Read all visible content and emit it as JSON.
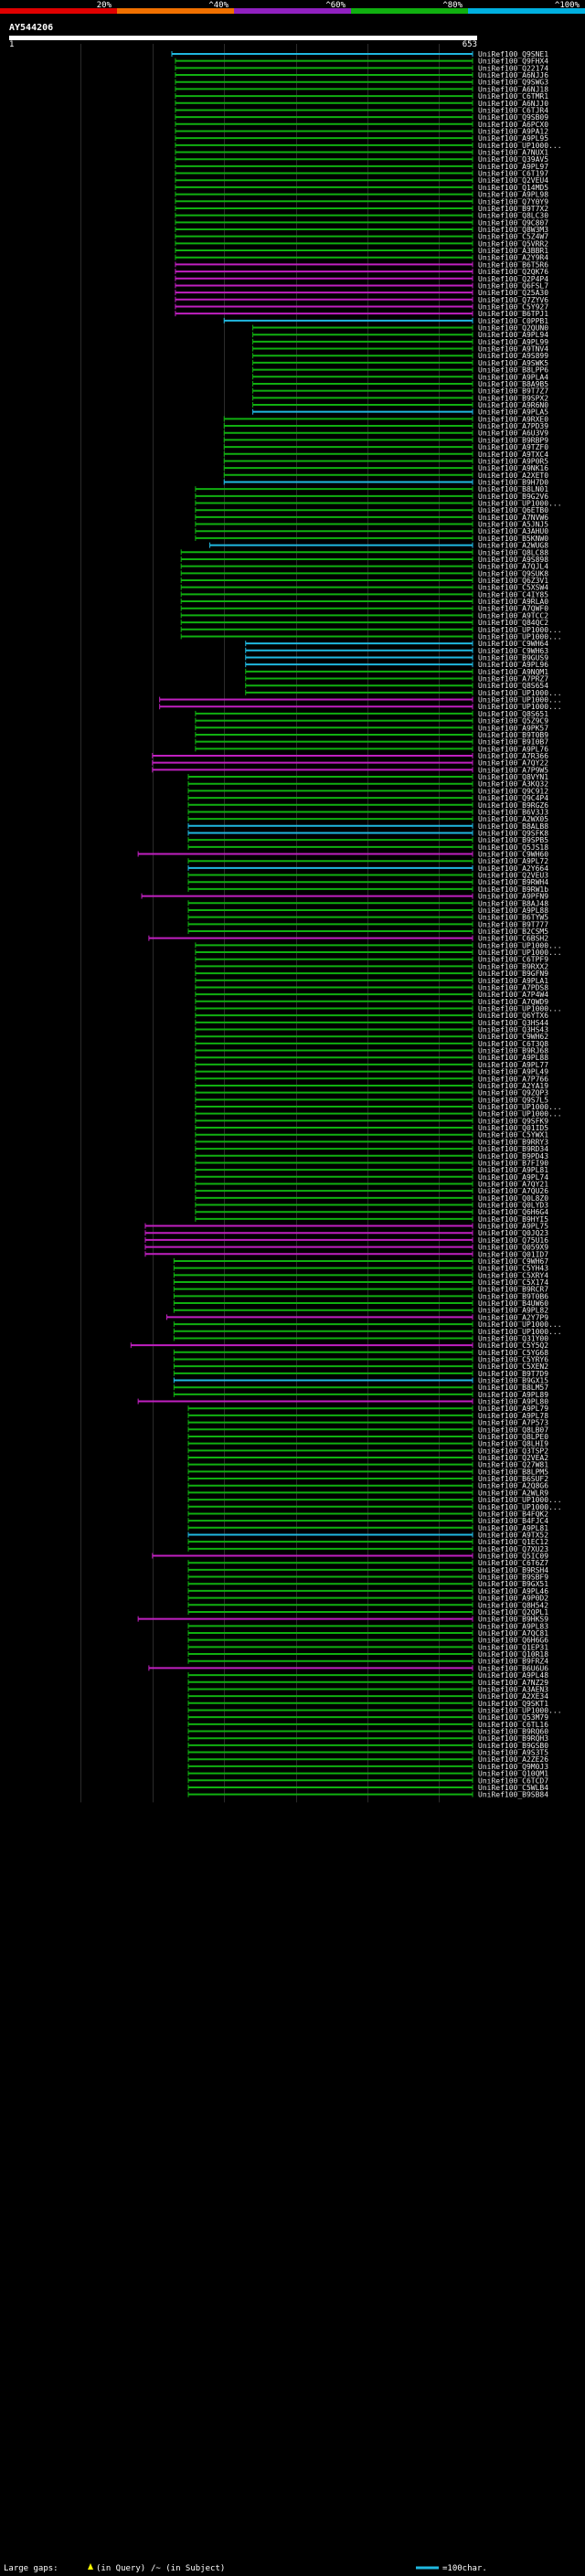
{
  "chart_data": {
    "type": "alignment-overview",
    "query_id": "AY544206",
    "query_start_label": "1",
    "query_length_label": "653",
    "query_length": 653,
    "identity_scale": [
      {
        "label": "20%",
        "color": "#e00000"
      },
      {
        "label": "^40%",
        "color": "#f07000"
      },
      {
        "label": "^60%",
        "color": "#9020c0"
      },
      {
        "label": "^80%",
        "color": "#10b010"
      },
      {
        "label": "^100%",
        "color": "#00b0e0"
      }
    ],
    "legend": {
      "large_gaps_prefix": "Large gaps:",
      "in_query_text": "(in Query)",
      "in_subject_text": "/~ (in Subject)",
      "scale_text": "=100char."
    },
    "palette": {
      "green": "#10b010",
      "magenta": "#c020c0",
      "cyan": "#20b8e0"
    },
    "hit_groups": [
      {
        "color": "cyan",
        "start": 227,
        "names": [
          "UniRef100_Q9SNE1"
        ]
      },
      {
        "color": "green",
        "start": 232,
        "names": [
          "UniRef100_Q9FHX4",
          "UniRef100_Q22174",
          "UniRef100_A6NJJ6",
          "UniRef100_Q9SWG3",
          "UniRef100_A6NJ18",
          "UniRef100_C6TMR1",
          "UniRef100_A6NJJ0",
          "UniRef100_C6TJR4",
          "UniRef100_Q9SB09",
          "UniRef100_A6PCX0",
          "UniRef100_A9PA12",
          "UniRef100_A9PL95",
          "UniRef100_UP1000...",
          "UniRef100_A7NUX1",
          "UniRef100_Q39AV5",
          "UniRef100_A9PL97",
          "UniRef100_C6T197",
          "UniRef100_Q2VEU4",
          "UniRef100_Q14MD5",
          "UniRef100_A9PL98",
          "UniRef100_Q7Y0Y9",
          "UniRef100_B9T7X2",
          "UniRef100_Q8LC30",
          "UniRef100_Q9C807",
          "UniRef100_Q8W3M3",
          "UniRef100_C5Z4W7",
          "UniRef100_Q5VRR2",
          "UniRef100_A3BBR1",
          "UniRef100_A2Y9R4"
        ]
      },
      {
        "color": "magenta",
        "start": 232,
        "names": [
          "UniRef100_B6T5R6",
          "UniRef100_Q2QK76",
          "UniRef100_Q2P4P4",
          "UniRef100_Q6FSL7",
          "UniRef100_Q25A30",
          "UniRef100_Q7ZYV6",
          "UniRef100_C5Y927",
          "UniRef100_B6TPJ1"
        ]
      },
      {
        "color": "cyan",
        "start": 300,
        "names": [
          "UniRef100_C0PPB1"
        ]
      },
      {
        "color": "green",
        "start": 340,
        "names": [
          "UniRef100_Q2QUN0",
          "UniRef100_A9PL94",
          "UniRef100_A9PL99",
          "UniRef100_A9TNV4",
          "UniRef100_A9S899",
          "UniRef100_A9SWK5",
          "UniRef100_B8LPP6",
          "UniRef100_A9PLA4",
          "UniRef100_B8A9B5",
          "UniRef100_B9T7Z7",
          "UniRef100_B9SPX2",
          "UniRef100_A9R6N0"
        ]
      },
      {
        "color": "cyan",
        "start": 340,
        "names": [
          "UniRef100_A9PLA5"
        ]
      },
      {
        "color": "green",
        "start": 300,
        "names": [
          "UniRef100_A9RXE0",
          "UniRef100_A7PD39",
          "UniRef100_A6U3V9",
          "UniRef100_B9RBP9",
          "UniRef100_A9TZF0",
          "UniRef100_A9TXC4",
          "UniRef100_A9P0R5",
          "UniRef100_A9NK16",
          "UniRef100_A2XET0"
        ]
      },
      {
        "color": "cyan",
        "start": 300,
        "names": [
          "UniRef100_B9H7D0"
        ]
      },
      {
        "color": "green",
        "start": 260,
        "names": [
          "UniRef100_B8LN01",
          "UniRef100_B9G2V6",
          "UniRef100_UP1000...",
          "UniRef100_Q6ETB0",
          "UniRef100_A7NVW6",
          "UniRef100_A5JNJ5",
          "UniRef100_A3AHU0",
          "UniRef100_B5KNW0"
        ]
      },
      {
        "color": "cyan",
        "start": 280,
        "names": [
          "UniRef100_A2WUG8"
        ]
      },
      {
        "color": "green",
        "start": 240,
        "names": [
          "UniRef100_Q8LC88",
          "UniRef100_A9S898",
          "UniRef100_A7QJL4",
          "UniRef100_Q9SUK8",
          "UniRef100_Q6Z3V1",
          "UniRef100_C5XSW4",
          "UniRef100_C4IY85",
          "UniRef100_A9RLA0",
          "UniRef100_A7QWF0",
          "UniRef100_A9TCC2",
          "UniRef100_Q84QC2",
          "UniRef100_UP1000...",
          "UniRef100_UP1000..."
        ]
      },
      {
        "color": "cyan",
        "start": 330,
        "names": [
          "UniRef100_C9WH64",
          "UniRef100_C9WH63",
          "UniRef100_B9GUS9",
          "UniRef100_A9PL96"
        ]
      },
      {
        "color": "green",
        "start": 330,
        "names": [
          "UniRef100_A9NQM1",
          "UniRef100_A7PRZ7",
          "UniRef100_Q8S654",
          "UniRef100_UP1000..."
        ]
      },
      {
        "color": "magenta",
        "start": 210,
        "names": [
          "UniRef100_UP1000...",
          "UniRef100_UP1000..."
        ]
      },
      {
        "color": "green",
        "start": 260,
        "names": [
          "UniRef100_Q8S651",
          "UniRef100_Q5Z9C9",
          "UniRef100_A9PK57",
          "UniRef100_B9T0B9",
          "UniRef100_B9I0B7",
          "UniRef100_A9PL76"
        ]
      },
      {
        "color": "magenta",
        "start": 200,
        "names": [
          "UniRef100_A7R366",
          "UniRef100_A7QY22",
          "UniRef100_A7P9W5"
        ]
      },
      {
        "color": "green",
        "start": 250,
        "names": [
          "UniRef100_Q8VYN1",
          "UniRef100_A3KQ32",
          "UniRef100_Q9C912",
          "UniRef100_Q9C4P4",
          "UniRef100_B9RGZ6",
          "UniRef100_B6V3J3",
          "UniRef100_A2WX05"
        ]
      },
      {
        "color": "cyan",
        "start": 250,
        "names": [
          "UniRef100_B8ALB8",
          "UniRef100_Q9SFK8"
        ]
      },
      {
        "color": "green",
        "start": 250,
        "names": [
          "UniRef100_B9SPB5",
          "UniRef100_Q5JS18"
        ]
      },
      {
        "color": "magenta",
        "start": 180,
        "names": [
          "UniRef100_C9WH60"
        ]
      },
      {
        "color": "green",
        "start": 250,
        "names": [
          "UniRef100_A9PL72"
        ]
      },
      {
        "color": "cyan",
        "start": 250,
        "names": [
          "UniRef100_A2Y664"
        ]
      },
      {
        "color": "green",
        "start": 250,
        "names": [
          "UniRef100_Q2VEU3",
          "UniRef100_B9RWH4",
          "UniRef100_B9RW1b"
        ]
      },
      {
        "color": "magenta",
        "start": 185,
        "names": [
          "UniRef100_A9PFN9"
        ]
      },
      {
        "color": "green",
        "start": 250,
        "names": [
          "UniRef100_B8AJ48",
          "UniRef100_A9PL88",
          "UniRef100_B6TYW5",
          "UniRef100_B9T777",
          "UniRef100_B2CSM5"
        ]
      },
      {
        "color": "magenta",
        "start": 195,
        "names": [
          "UniRef100_C6BSH2"
        ]
      },
      {
        "color": "green",
        "start": 260,
        "names": [
          "UniRef100_UP1000...",
          "UniRef100_UP1000...",
          "UniRef100_C6TPF9",
          "UniRef100_B9RXX2",
          "UniRef100_B9GFN9",
          "UniRef100_A9PLA1",
          "UniRef100_A7PDS8",
          "UniRef100_A7P4W4",
          "UniRef100_A7QWD9",
          "UniRef100_UP1000...",
          "UniRef100_Q6YTX6",
          "UniRef100_Q3HS44",
          "UniRef100_Q3HS43",
          "UniRef100_C9WH62",
          "UniRef100_C6T3Q8",
          "UniRef100_B9RJ68",
          "UniRef100_A9PL88",
          "UniRef100_A9PL77",
          "UniRef100_A9PL49",
          "UniRef100_A7P766",
          "UniRef100_A2YA19",
          "UniRef100_Q9ZQP3",
          "UniRef100_Q9S7L5",
          "UniRef100_UP1000...",
          "UniRef100_UP1000...",
          "UniRef100_Q9SFK9",
          "UniRef100_Q01ID5",
          "UniRef100_C5YWX1",
          "UniRef100_B9RRY3",
          "UniRef100_B9RD34",
          "UniRef100_B9PD43",
          "UniRef100_B7FI90",
          "UniRef100_A9PL81",
          "UniRef100_A9PL74",
          "UniRef100_A7QY21",
          "UniRef100_A7QU26",
          "UniRef100_Q0L8Z0",
          "UniRef100_Q0LYD3",
          "UniRef100_Q6H6G4",
          "UniRef100_B9HYI5"
        ]
      },
      {
        "color": "magenta",
        "start": 190,
        "names": [
          "UniRef100_A9PL75",
          "UniRef100_Q0JQ23",
          "UniRef100_Q75U16",
          "UniRef100_Q059X9",
          "UniRef100_Q01ID7"
        ]
      },
      {
        "color": "green",
        "start": 230,
        "names": [
          "UniRef100_C9WH67",
          "UniRef100_C5YH43",
          "UniRef100_C5XRY4",
          "UniRef100_C5X174",
          "UniRef100_B9RCR7",
          "UniRef100_B9T0B6",
          "UniRef100_B4UW60",
          "UniRef100_A9PL82"
        ]
      },
      {
        "color": "magenta",
        "start": 220,
        "names": [
          "UniRef100_A2Y7P9"
        ]
      },
      {
        "color": "green",
        "start": 230,
        "names": [
          "UniRef100_UP1000...",
          "UniRef100_UP1000...",
          "UniRef100_Q31Y00"
        ]
      },
      {
        "color": "magenta",
        "start": 170,
        "names": [
          "UniRef100_C5Y5Q2"
        ]
      },
      {
        "color": "green",
        "start": 230,
        "names": [
          "UniRef100_C5YG68",
          "UniRef100_C5YRY6",
          "UniRef100_C5XEN2",
          "UniRef100_B9T7D9"
        ]
      },
      {
        "color": "cyan",
        "start": 230,
        "names": [
          "UniRef100_B9GX15"
        ]
      },
      {
        "color": "green",
        "start": 230,
        "names": [
          "UniRef100_B8LM57",
          "UniRef100_A9PL89"
        ]
      },
      {
        "color": "magenta",
        "start": 180,
        "names": [
          "UniRef100_A9PL80"
        ]
      },
      {
        "color": "green",
        "start": 250,
        "names": [
          "UniRef100_A9PL79",
          "UniRef100_A9PL78",
          "UniRef100_A7P573",
          "UniRef100_Q8LB07",
          "UniRef100_Q8LPE0",
          "UniRef100_Q8LHI9",
          "UniRef100_Q3TSP2",
          "UniRef100_Q2VEA2",
          "UniRef100_Q27W81",
          "UniRef100_B8LPM5",
          "UniRef100_B6SUF2",
          "UniRef100_A2Q8G6",
          "UniRef100_A2WLR9",
          "UniRef100_UP1000...",
          "UniRef100_UP1000...",
          "UniRef100_B4FQK2",
          "UniRef100_B4FJC4",
          "UniRef100_A9PL81"
        ]
      },
      {
        "color": "cyan",
        "start": 250,
        "names": [
          "UniRef100_A9TX52"
        ]
      },
      {
        "color": "green",
        "start": 250,
        "names": [
          "UniRef100_Q1EC12",
          "UniRef100_Q7XU23"
        ]
      },
      {
        "color": "magenta",
        "start": 200,
        "names": [
          "UniRef100_Q5IC09"
        ]
      },
      {
        "color": "green",
        "start": 250,
        "names": [
          "UniRef100_C6T6Z7",
          "UniRef100_B9RSH4",
          "UniRef100_B9SBF9",
          "UniRef100_B9GX51",
          "UniRef100_A9PL46",
          "UniRef100_A9P0D2",
          "UniRef100_Q8H542",
          "UniRef100_Q2QPL1"
        ]
      },
      {
        "color": "magenta",
        "start": 180,
        "names": [
          "UniRef100_B9HKS9"
        ]
      },
      {
        "color": "green",
        "start": 250,
        "names": [
          "UniRef100_A9PL83",
          "UniRef100_A7QC81",
          "UniRef100_Q6H6G6",
          "UniRef100_Q1EP31",
          "UniRef100_Q10R18",
          "UniRef100_B9FRZ4"
        ]
      },
      {
        "color": "magenta",
        "start": 195,
        "names": [
          "UniRef100_B6U6U6"
        ]
      },
      {
        "color": "green",
        "start": 250,
        "names": [
          "UniRef100_A9PL48",
          "UniRef100_A7NZ29",
          "UniRef100_A3AEN3",
          "UniRef100_A2XE34",
          "UniRef100_Q9SKT1",
          "UniRef100_UP1000...",
          "UniRef100_Q53M79",
          "UniRef100_C6TL16",
          "UniRef100_B9RQ60",
          "UniRef100_B9RQH3",
          "UniRef100_B9GSB0",
          "UniRef100_A9S3T5",
          "UniRef100_A2ZE26",
          "UniRef100_Q9M0J3",
          "UniRef100_Q10QM1",
          "UniRef100_C6TCD7",
          "UniRef100_C5WLB4",
          "UniRef100_B9SB84"
        ]
      }
    ]
  }
}
